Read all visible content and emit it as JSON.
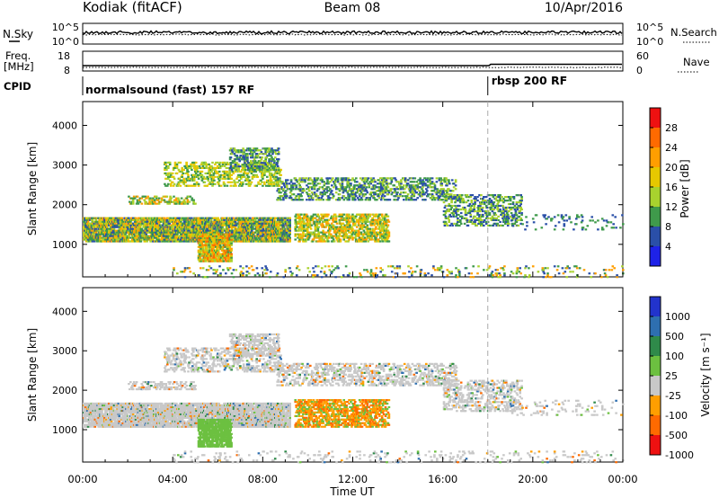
{
  "header": {
    "station": "Kodiak (fitACF)",
    "beam": "Beam 08",
    "date": "10/Apr/2016"
  },
  "params": {
    "nsky_label": "N.Sky",
    "nsky_ticks": [
      "10^5",
      "10^0"
    ],
    "nsearch_label": "N.Search",
    "nsearch_ticks": [
      "10^5",
      "10^0"
    ],
    "freq_label_1": "Freq.",
    "freq_label_2": "[MHz]",
    "freq_ticks": [
      "18",
      "8"
    ],
    "nave_label": "Nave",
    "nave_ticks": [
      "60",
      "0"
    ],
    "cpid_label": "CPID",
    "cpid_segments": [
      {
        "label": "normalsound (fast) 157 RF",
        "start_hour": 0
      },
      {
        "label": "rbsp 200 RF",
        "start_hour": 18
      }
    ]
  },
  "x_axis": {
    "label": "Time UT",
    "ticks": [
      "00:00",
      "04:00",
      "08:00",
      "12:00",
      "16:00",
      "20:00",
      "00:00"
    ],
    "tick_hours": [
      0,
      4,
      8,
      12,
      16,
      20,
      24
    ],
    "range_hours": [
      0,
      24
    ]
  },
  "panels": [
    {
      "key": "power",
      "ylabel": "Slant Range [km]",
      "yticks": [
        "4000",
        "3000",
        "2000",
        "1000"
      ],
      "ytick_values": [
        4000,
        3000,
        2000,
        1000
      ],
      "ylim": [
        180,
        4600
      ],
      "colorbar_label": "Power [dB]",
      "colorbar_ticks": [
        "28",
        "24",
        "20",
        "16",
        "12",
        "8",
        "4"
      ],
      "colorbar_colors": [
        "#ee1111",
        "#ff6a00",
        "#ff9e00",
        "#e6c800",
        "#a8d22e",
        "#3f9a4b",
        "#2a4fa8",
        "#1e22e8"
      ]
    },
    {
      "key": "velocity",
      "ylabel": "Slant Range [km]",
      "yticks": [
        "4000",
        "3000",
        "2000",
        "1000"
      ],
      "ytick_values": [
        4000,
        3000,
        2000,
        1000
      ],
      "ylim": [
        180,
        4600
      ],
      "colorbar_label": "Velocity [m s⁻¹]",
      "colorbar_ticks": [
        "1000",
        "500",
        "100",
        "25",
        "-25",
        "-100",
        "-500",
        "-1000"
      ],
      "colorbar_colors": [
        "#2233cc",
        "#2e6fb0",
        "#2f8a4a",
        "#6cc040",
        "#c8c8c8",
        "#ff9e00",
        "#ff6a00",
        "#ee1111"
      ]
    }
  ]
}
